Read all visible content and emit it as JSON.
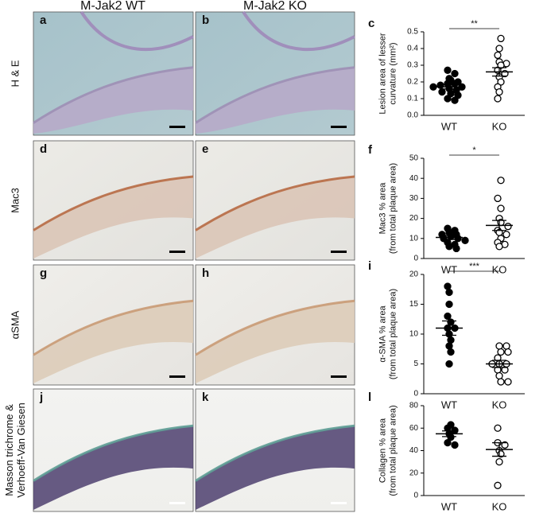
{
  "columns": [
    "M-Jak2 WT",
    "M-Jak2 KO"
  ],
  "rows": [
    {
      "lines": [
        "H & E"
      ],
      "panels": [
        "a",
        "b"
      ]
    },
    {
      "lines": [
        "Mac3"
      ],
      "panels": [
        "d",
        "e"
      ]
    },
    {
      "lines": [
        "αSMA"
      ],
      "panels": [
        "g",
        "h"
      ]
    },
    {
      "lines": [
        "Masson trichrome &",
        "Verhoeff-Van Giesen"
      ],
      "panels": [
        "j",
        "k"
      ]
    }
  ],
  "chart_data": [
    {
      "type": "scatter",
      "panel": "c",
      "ylabel": [
        "Lesion area of lesser",
        "curvature (mm²)"
      ],
      "significance": "**",
      "categories": [
        "WT",
        "KO"
      ],
      "ylim": [
        0,
        0.5
      ],
      "yticks": [
        {
          "value": 0,
          "label": "0.0"
        },
        0.1,
        0.2,
        0.3,
        0.4,
        0.5
      ],
      "series": [
        {
          "name": "WT",
          "color": "#000000",
          "filled": true,
          "values": [
            0.27,
            0.25,
            0.22,
            0.21,
            0.2,
            0.19,
            0.19,
            0.18,
            0.17,
            0.17,
            0.16,
            0.15,
            0.14,
            0.13,
            0.12,
            0.1,
            0.09
          ],
          "mean": 0.17,
          "sem": 0.012
        },
        {
          "name": "KO",
          "color": "#000000",
          "filled": false,
          "values": [
            0.46,
            0.4,
            0.36,
            0.32,
            0.31,
            0.3,
            0.27,
            0.25,
            0.23,
            0.2,
            0.17,
            0.14,
            0.1
          ],
          "mean": 0.26,
          "sem": 0.025
        }
      ]
    },
    {
      "type": "scatter",
      "panel": "f",
      "ylabel": [
        "Mac3 % area",
        "(from total plaque area)"
      ],
      "significance": "*",
      "categories": [
        "WT",
        "KO"
      ],
      "ylim": [
        0,
        50
      ],
      "yticks": [
        0,
        10,
        20,
        30,
        40,
        50
      ],
      "series": [
        {
          "name": "WT",
          "color": "#000000",
          "filled": true,
          "values": [
            15,
            14,
            13,
            12,
            12,
            11,
            10,
            10,
            9,
            8,
            7,
            6,
            5
          ],
          "mean": 10.5,
          "sem": 1
        },
        {
          "name": "KO",
          "color": "#000000",
          "filled": false,
          "values": [
            39,
            30,
            25,
            20,
            18,
            16,
            14,
            13,
            12,
            10,
            8,
            7,
            6
          ],
          "mean": 16.5,
          "sem": 2.5
        }
      ]
    },
    {
      "type": "scatter",
      "panel": "i",
      "ylabel": [
        "α-SMA % area",
        "(from total plaque area)"
      ],
      "significance": "***",
      "categories": [
        "WT",
        "KO"
      ],
      "ylim": [
        0,
        20
      ],
      "yticks": [
        0,
        5,
        10,
        15,
        20
      ],
      "series": [
        {
          "name": "WT",
          "color": "#000000",
          "filled": true,
          "values": [
            18,
            17,
            15,
            13,
            12,
            11,
            11,
            10,
            9,
            8,
            7,
            5
          ],
          "mean": 11,
          "sem": 1.2
        },
        {
          "name": "KO",
          "color": "#000000",
          "filled": false,
          "values": [
            8,
            8,
            7,
            7,
            6,
            5,
            5,
            5,
            4,
            4,
            3,
            2,
            2
          ],
          "mean": 5,
          "sem": 0.6
        }
      ]
    },
    {
      "type": "scatter",
      "panel": "l",
      "ylabel": [
        "Collagen % area",
        "(from total plaque area)"
      ],
      "categories": [
        "WT",
        "KO"
      ],
      "ylim": [
        0,
        80
      ],
      "yticks": [
        0,
        20,
        40,
        60,
        80
      ],
      "series": [
        {
          "name": "WT",
          "color": "#000000",
          "filled": true,
          "values": [
            63,
            60,
            58,
            55,
            52,
            47,
            45
          ],
          "mean": 55,
          "sem": 2.5
        },
        {
          "name": "KO",
          "color": "#000000",
          "filled": false,
          "values": [
            60,
            47,
            45,
            40,
            37,
            30,
            9
          ],
          "mean": 41,
          "sem": 6
        }
      ]
    }
  ]
}
